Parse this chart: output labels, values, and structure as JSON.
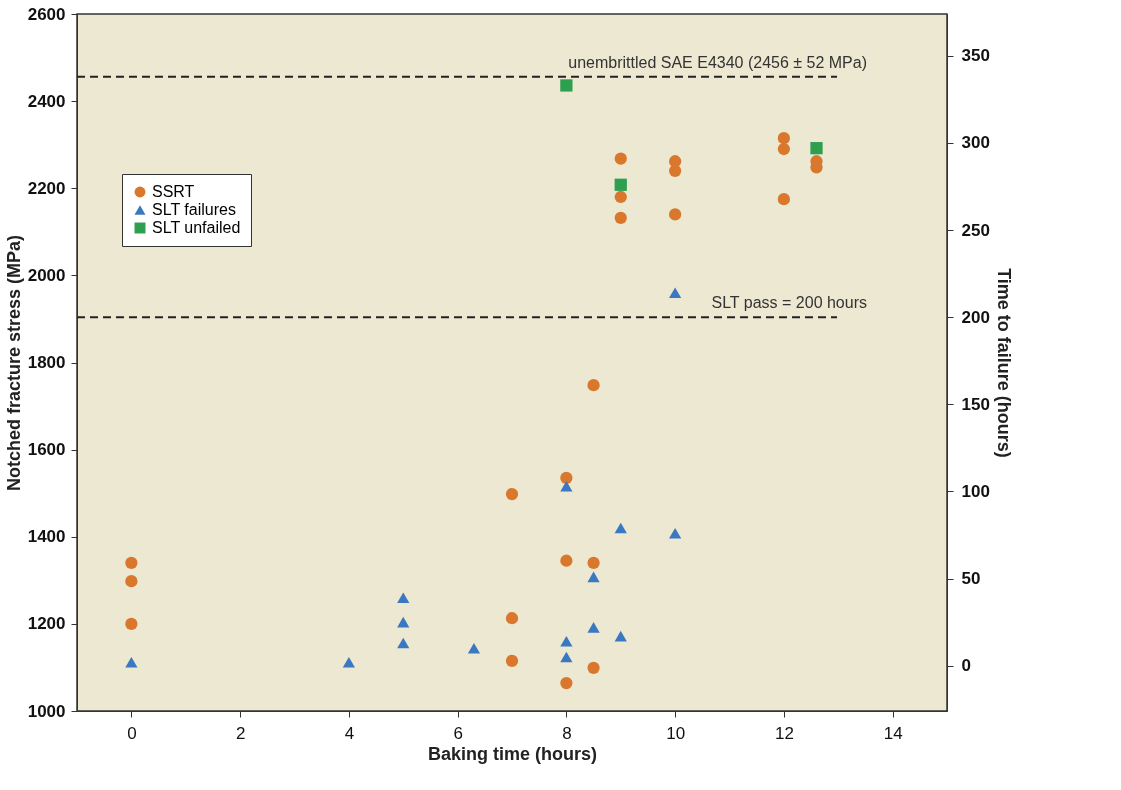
{
  "chart_data": {
    "type": "scatter",
    "xlabel": "Baking time (hours)",
    "ylabel": "Notched fracture stress (MPa)",
    "y2label": "Time to failure (hours)",
    "xlim": [
      -1,
      15
    ],
    "xticks": [
      0,
      2,
      4,
      6,
      8,
      10,
      12,
      14
    ],
    "ylim": [
      1000,
      2600
    ],
    "yticks": [
      1000,
      1200,
      1400,
      1600,
      1800,
      2000,
      2200,
      2400,
      2600
    ],
    "y2lim": [
      -26,
      374
    ],
    "y2ticks": [
      0,
      50,
      100,
      150,
      200,
      250,
      300,
      350
    ],
    "grid": false,
    "legend": "top left",
    "series": [
      {
        "name": "SSRT",
        "color": "#d9782d",
        "marker": "circle",
        "x": [
          0,
          0,
          0,
          7,
          7,
          7,
          8,
          8,
          8,
          8.5,
          8.5,
          8.5,
          9,
          9,
          9,
          10,
          10,
          10,
          12,
          12,
          12,
          12.6,
          12.6
        ],
        "values": [
          1340,
          1298,
          1200,
          1498,
          1213,
          1115,
          1535,
          1345,
          1064,
          1748,
          1340,
          1099,
          2268,
          2180,
          2132,
          2262,
          2240,
          2140,
          2315,
          2290,
          2175,
          2262,
          2248
        ]
      },
      {
        "name": "SLT failures",
        "color": "#3a78c2",
        "marker": "triangle",
        "axis": "y2",
        "x": [
          0,
          4,
          5,
          5,
          5,
          6.3,
          8,
          8,
          8,
          8.5,
          8.5,
          9,
          9,
          10,
          10
        ],
        "values": [
          2,
          2,
          39,
          25,
          13,
          10,
          103,
          14,
          5,
          51,
          22,
          79,
          17,
          76,
          214
        ]
      },
      {
        "name": "SLT unfailed",
        "color": "#2e9e4f",
        "marker": "square",
        "axis": "y2",
        "x": [
          8,
          9,
          12.6
        ],
        "values": [
          333,
          276,
          297
        ]
      }
    ],
    "ref_lines": [
      {
        "axis": "y",
        "value": 2456,
        "label": "unembrittled SAE E4340 (2456 ± 52 MPa)",
        "color": "#222222",
        "line_style": "dashed"
      },
      {
        "axis": "y2",
        "value": 200,
        "label": "SLT pass = 200 hours",
        "color": "#222222",
        "line_style": "dashed"
      }
    ]
  }
}
